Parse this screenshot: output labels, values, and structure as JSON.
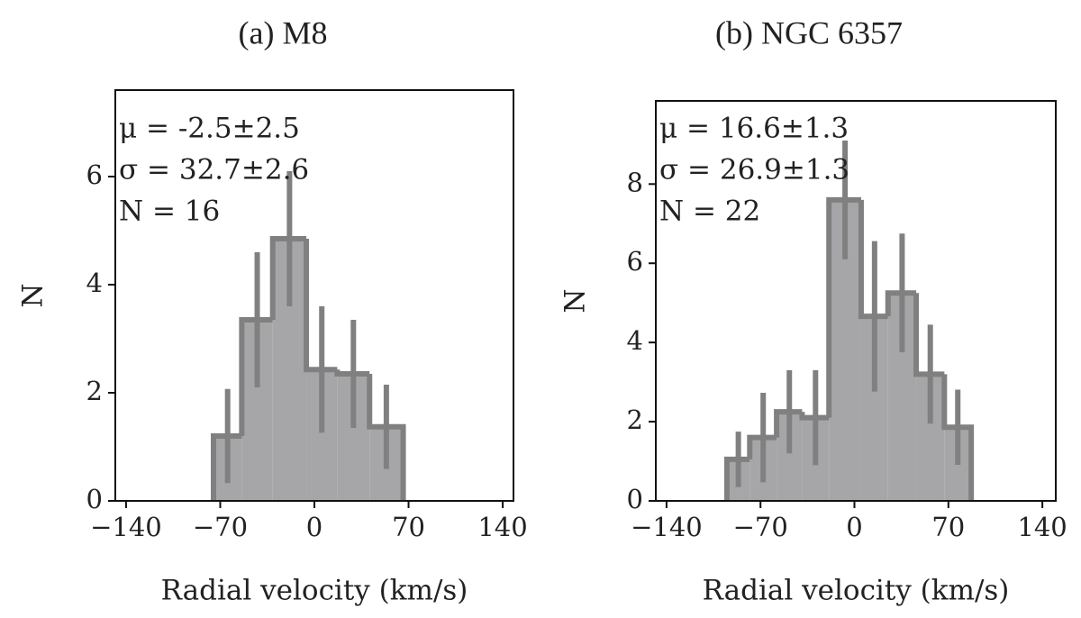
{
  "chart_data": [
    {
      "type": "histogram",
      "title": "(a) M8",
      "xlabel": "Radial velocity (km/s)",
      "ylabel": "N",
      "annotations": [
        "μ = -2.5±2.5",
        "σ = 32.7±2.6",
        "N = 16"
      ],
      "bins": [
        -75,
        -54,
        -31,
        -6,
        17,
        41,
        66
      ],
      "values": [
        1.2,
        3.35,
        4.85,
        2.43,
        2.35,
        1.37
      ],
      "errors": [
        0.87,
        1.25,
        1.25,
        1.17,
        1.0,
        0.78
      ],
      "color": "#a6a6a8",
      "edge_color": "#808080",
      "xlim": [
        -148,
        148
      ],
      "ylim": [
        0,
        7.6
      ],
      "xticks": [
        {
          "value": -140,
          "label": "−140"
        },
        {
          "value": -70,
          "label": "−70"
        },
        0,
        70,
        140
      ],
      "yticks": [
        0,
        2,
        4,
        6
      ]
    },
    {
      "type": "histogram",
      "title": "(b) NGC 6357",
      "xlabel": "Radial velocity (km/s)",
      "ylabel": "N",
      "annotations": [
        "μ = 16.6±1.3",
        "σ = 26.9±1.3",
        "N = 22"
      ],
      "bins": [
        -95,
        -78,
        -58,
        -39,
        -19,
        5,
        25,
        46,
        67,
        87
      ],
      "values": [
        1.05,
        1.6,
        2.25,
        2.1,
        7.6,
        4.66,
        5.25,
        3.2,
        1.86
      ],
      "errors": [
        0.7,
        1.13,
        1.05,
        1.2,
        1.5,
        1.9,
        1.5,
        1.25,
        0.95
      ],
      "color": "#a6a6a8",
      "edge_color": "#808080",
      "xlim": [
        -148,
        150
      ],
      "ylim": [
        0,
        10.1
      ],
      "xticks": [
        {
          "value": -140,
          "label": "−140"
        },
        {
          "value": -70,
          "label": "−70"
        },
        0,
        70,
        140
      ],
      "yticks": [
        0,
        2,
        4,
        6,
        8
      ]
    }
  ]
}
